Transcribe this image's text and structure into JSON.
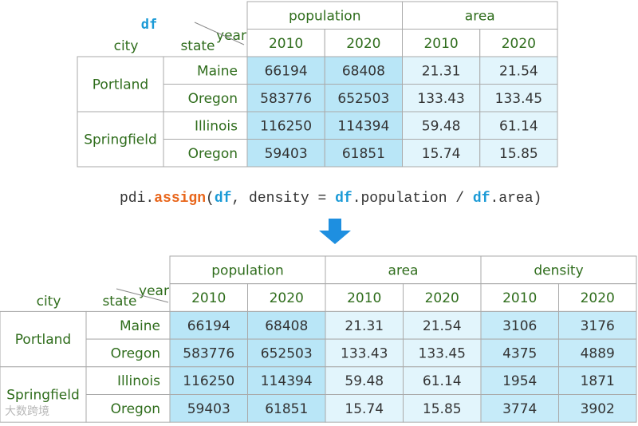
{
  "top_table": {
    "label": "df",
    "index_names": [
      "city",
      "state"
    ],
    "columns_name": "year",
    "column_groups": [
      {
        "name": "population",
        "subcolumns": [
          2010,
          2020
        ]
      },
      {
        "name": "area",
        "subcolumns": [
          2010,
          2020
        ]
      }
    ],
    "row_groups": [
      {
        "name": "Portland",
        "rows": [
          "Maine",
          "Oregon"
        ]
      },
      {
        "name": "Springfield",
        "rows": [
          "Illinois",
          "Oregon"
        ]
      }
    ],
    "rows": [
      [
        66194,
        68408,
        21.31,
        21.54
      ],
      [
        583776,
        652503,
        133.43,
        133.45
      ],
      [
        116250,
        114394,
        59.48,
        61.14
      ],
      [
        59403,
        61851,
        15.74,
        15.85
      ]
    ]
  },
  "code": {
    "tokens": [
      "pdi.",
      "assign",
      "(",
      "df",
      ", density = ",
      "df",
      ".population / ",
      "df",
      ".area)"
    ]
  },
  "bottom_table": {
    "index_names": [
      "city",
      "state"
    ],
    "columns_name": "year",
    "column_groups": [
      {
        "name": "population",
        "subcolumns": [
          2010,
          2020
        ]
      },
      {
        "name": "area",
        "subcolumns": [
          2010,
          2020
        ]
      },
      {
        "name": "density",
        "subcolumns": [
          2010,
          2020
        ]
      }
    ],
    "row_groups": [
      {
        "name": "Portland",
        "rows": [
          "Maine",
          "Oregon"
        ]
      },
      {
        "name": "Springfield",
        "rows": [
          "Illinois",
          "Oregon"
        ]
      }
    ],
    "rows": [
      [
        66194,
        68408,
        21.31,
        21.54,
        3106,
        3176
      ],
      [
        583776,
        652503,
        133.43,
        133.45,
        4375,
        4889
      ],
      [
        116250,
        114394,
        59.48,
        61.14,
        1954,
        1871
      ],
      [
        59403,
        61851,
        15.74,
        15.85,
        3774,
        3902
      ]
    ]
  },
  "watermark": "大数跨境"
}
